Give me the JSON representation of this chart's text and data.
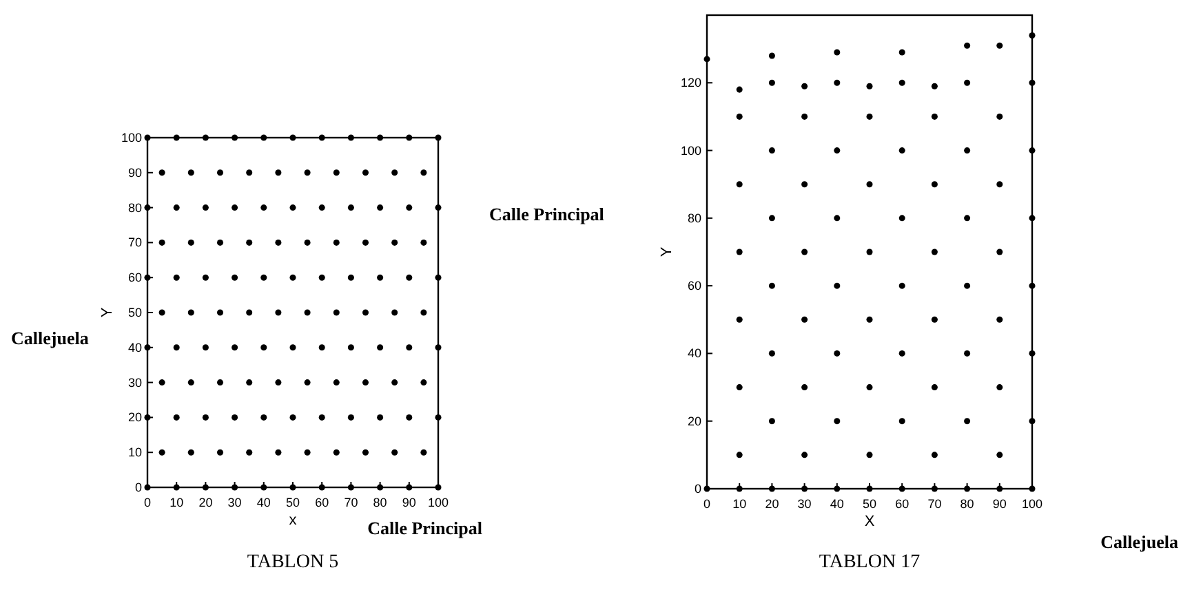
{
  "chart_data": [
    {
      "type": "scatter",
      "title": "TABLON 5",
      "xlabel": "x",
      "ylabel": "Y",
      "annotations": [
        "Callejuela",
        "Calle Principal"
      ],
      "xlim": [
        0,
        100
      ],
      "ylim": [
        0,
        100
      ],
      "xticks": [
        0,
        10,
        20,
        30,
        40,
        50,
        60,
        70,
        80,
        90,
        100
      ],
      "yticks": [
        0,
        10,
        20,
        30,
        40,
        50,
        60,
        70,
        80,
        90,
        100
      ],
      "grid": false,
      "marker": "circle",
      "series": [
        {
          "color": "#000000",
          "x": [
            0,
            10,
            20,
            30,
            40,
            50,
            60,
            70,
            80,
            90,
            100,
            5,
            15,
            25,
            35,
            45,
            55,
            65,
            75,
            85,
            95,
            0,
            10,
            20,
            30,
            40,
            50,
            60,
            70,
            80,
            90,
            100,
            5,
            15,
            25,
            35,
            45,
            55,
            65,
            75,
            85,
            95,
            0,
            10,
            20,
            30,
            40,
            50,
            60,
            70,
            80,
            90,
            100,
            5,
            15,
            25,
            35,
            45,
            55,
            65,
            75,
            85,
            95,
            0,
            10,
            20,
            30,
            40,
            50,
            60,
            70,
            80,
            90,
            100,
            5,
            15,
            25,
            35,
            45,
            55,
            65,
            75,
            85,
            95,
            0,
            10,
            20,
            30,
            40,
            50,
            60,
            70,
            80,
            90,
            100,
            5,
            15,
            25,
            35,
            45,
            55,
            65,
            75,
            85,
            95,
            0,
            10,
            20,
            30,
            40,
            50,
            60,
            70,
            80,
            90,
            100
          ],
          "values": [
            0,
            0,
            0,
            0,
            0,
            0,
            0,
            0,
            0,
            0,
            0,
            10,
            10,
            10,
            10,
            10,
            10,
            10,
            10,
            10,
            10,
            20,
            20,
            20,
            20,
            20,
            20,
            20,
            20,
            20,
            20,
            20,
            30,
            30,
            30,
            30,
            30,
            30,
            30,
            30,
            30,
            30,
            40,
            40,
            40,
            40,
            40,
            40,
            40,
            40,
            40,
            40,
            40,
            50,
            50,
            50,
            50,
            50,
            50,
            50,
            50,
            50,
            50,
            60,
            60,
            60,
            60,
            60,
            60,
            60,
            60,
            60,
            60,
            60,
            70,
            70,
            70,
            70,
            70,
            70,
            70,
            70,
            70,
            70,
            80,
            80,
            80,
            80,
            80,
            80,
            80,
            80,
            80,
            80,
            80,
            90,
            90,
            90,
            90,
            90,
            90,
            90,
            90,
            90,
            90,
            100,
            100,
            100,
            100,
            100,
            100,
            100,
            100,
            100,
            100,
            100
          ]
        }
      ]
    },
    {
      "type": "scatter",
      "title": "TABLON 17",
      "xlabel": "X",
      "ylabel": "Y",
      "annotations": [
        "Calle Principal",
        "Callejuela"
      ],
      "xlim": [
        0,
        100
      ],
      "ylim": [
        0,
        140
      ],
      "xticks": [
        0,
        10,
        20,
        30,
        40,
        50,
        60,
        70,
        80,
        90,
        100
      ],
      "yticks": [
        0,
        20,
        40,
        60,
        80,
        100,
        120
      ],
      "grid": false,
      "marker": "circle",
      "series": [
        {
          "color": "#000000",
          "x": [
            0,
            10,
            20,
            30,
            40,
            50,
            60,
            70,
            80,
            90,
            100,
            100,
            100,
            100,
            100,
            100,
            100,
            100,
            10,
            30,
            50,
            70,
            90,
            10,
            30,
            50,
            70,
            90,
            10,
            30,
            50,
            70,
            90,
            10,
            30,
            50,
            70,
            90,
            10,
            30,
            50,
            70,
            90,
            10,
            30,
            50,
            70,
            90,
            20,
            40,
            60,
            80,
            20,
            40,
            60,
            80,
            20,
            40,
            60,
            80,
            20,
            40,
            60,
            80,
            20,
            40,
            60,
            80,
            10,
            20,
            30,
            40,
            50,
            60,
            70,
            80,
            0,
            20,
            40,
            60,
            80,
            90
          ],
          "values": [
            0,
            0,
            0,
            0,
            0,
            0,
            0,
            0,
            0,
            0,
            0,
            20,
            40,
            60,
            80,
            100,
            120,
            134,
            10,
            10,
            10,
            10,
            10,
            30,
            30,
            30,
            30,
            30,
            50,
            50,
            50,
            50,
            50,
            70,
            70,
            70,
            70,
            70,
            90,
            90,
            90,
            90,
            90,
            110,
            110,
            110,
            110,
            110,
            20,
            20,
            20,
            20,
            40,
            40,
            40,
            40,
            60,
            60,
            60,
            60,
            80,
            80,
            80,
            80,
            100,
            100,
            100,
            100,
            118,
            120,
            119,
            120,
            119,
            120,
            119,
            120,
            127,
            128,
            129,
            129,
            131,
            131
          ]
        }
      ]
    }
  ]
}
